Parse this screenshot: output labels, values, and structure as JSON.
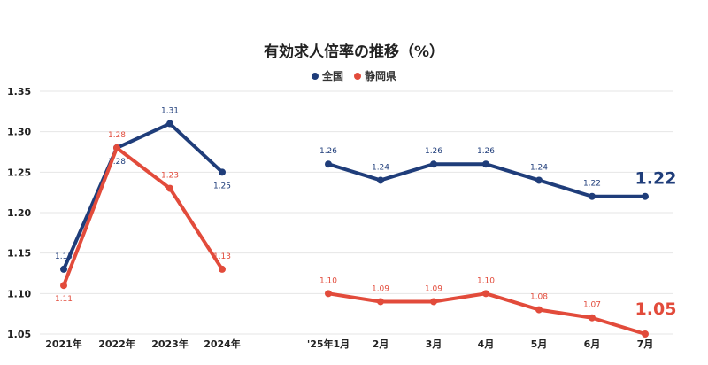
{
  "chart_data": {
    "type": "line",
    "title": "有効求人倍率の推移（%）",
    "xlabel": "",
    "ylabel": "",
    "ylim": [
      1.05,
      1.35
    ],
    "yticks": [
      "1.35",
      "1.30",
      "1.25",
      "1.20",
      "1.15",
      "1.10",
      "1.05"
    ],
    "grid": true,
    "legend_position": "top-center",
    "panels": [
      {
        "categories": [
          "2021年",
          "2022年",
          "2023年",
          "2024年"
        ],
        "series": [
          {
            "name": "全国",
            "values": [
              1.13,
              1.28,
              1.31,
              1.25
            ]
          },
          {
            "name": "静岡県",
            "values": [
              1.11,
              1.28,
              1.23,
              1.13
            ]
          }
        ]
      },
      {
        "categories": [
          "'25年1月",
          "2月",
          "3月",
          "4月",
          "5月",
          "6月",
          "7月"
        ],
        "series": [
          {
            "name": "全国",
            "values": [
              1.26,
              1.24,
              1.26,
              1.26,
              1.24,
              1.22,
              1.22
            ]
          },
          {
            "name": "静岡県",
            "values": [
              1.1,
              1.09,
              1.09,
              1.1,
              1.08,
              1.07,
              1.05
            ]
          }
        ]
      }
    ],
    "series_colors": {
      "全国": "#1f3d7a",
      "静岡県": "#e24b3b"
    },
    "highlight_labels": {
      "全国": "1.22",
      "静岡県": "1.05"
    }
  }
}
